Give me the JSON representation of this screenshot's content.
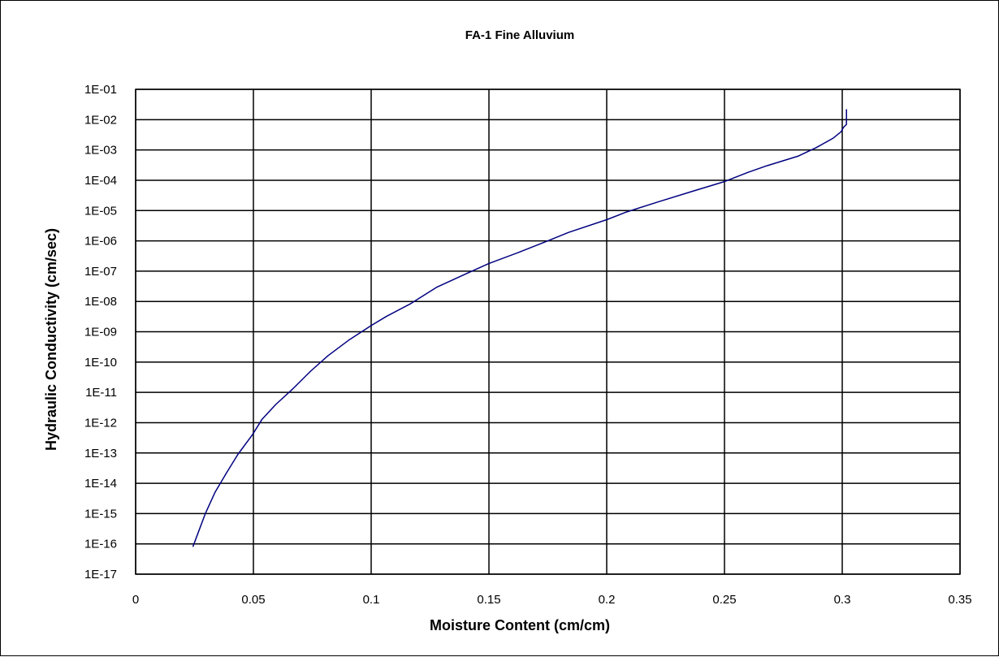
{
  "chart_data": {
    "type": "line",
    "title": "FA-1 Fine Alluvium",
    "xlabel": "Moisture Content (cm/cm)",
    "ylabel": "Hydraulic Conductivity (cm/sec)",
    "xlim": [
      0,
      0.35
    ],
    "ylim": [
      1e-17,
      0.1
    ],
    "y_scale": "log",
    "grid": true,
    "legend": "none",
    "x_ticks": [
      "0",
      "0.05",
      "0.1",
      "0.15",
      "0.2",
      "0.25",
      "0.3",
      "0.35"
    ],
    "x_tick_values": [
      0,
      0.05,
      0.1,
      0.15,
      0.2,
      0.25,
      0.3,
      0.35
    ],
    "y_ticks": [
      "1E-01",
      "1E-02",
      "1E-03",
      "1E-04",
      "1E-05",
      "1E-06",
      "1E-07",
      "1E-08",
      "1E-09",
      "1E-10",
      "1E-11",
      "1E-12",
      "1E-13",
      "1E-14",
      "1E-15",
      "1E-16",
      "1E-17"
    ],
    "y_tick_values": [
      0.1,
      0.01,
      0.001,
      0.0001,
      1e-05,
      1e-06,
      1e-07,
      1e-08,
      1e-09,
      1e-10,
      1e-11,
      1e-12,
      1e-13,
      1e-14,
      1e-15,
      1e-16,
      1e-17
    ],
    "line_color": "#000080",
    "series": [
      {
        "points": [
          [
            0.0243,
            8e-17
          ],
          [
            0.0265,
            2.3e-16
          ],
          [
            0.0296,
            1e-15
          ],
          [
            0.0337,
            5e-15
          ],
          [
            0.0386,
            2.2e-14
          ],
          [
            0.0434,
            9e-14
          ],
          [
            0.0496,
            4e-13
          ],
          [
            0.0537,
            1.3e-12
          ],
          [
            0.0595,
            4e-12
          ],
          [
            0.0667,
            1.3e-11
          ],
          [
            0.0743,
            5e-11
          ],
          [
            0.0816,
            1.6e-10
          ],
          [
            0.0908,
            5.5e-10
          ],
          [
            0.1,
            1.6e-09
          ],
          [
            0.1064,
            3.2e-09
          ],
          [
            0.1166,
            8.3e-09
          ],
          [
            0.128,
            3e-08
          ],
          [
            0.1404,
            8.3e-08
          ],
          [
            0.15,
            1.8e-07
          ],
          [
            0.1628,
            4.2e-07
          ],
          [
            0.175,
            1e-06
          ],
          [
            0.1838,
            1.9e-06
          ],
          [
            0.2,
            5e-06
          ],
          [
            0.2083,
            8.9e-06
          ],
          [
            0.2216,
            1.9e-05
          ],
          [
            0.2359,
            4.2e-05
          ],
          [
            0.25,
            9e-05
          ],
          [
            0.2598,
            0.00018
          ],
          [
            0.268,
            0.0003
          ],
          [
            0.2814,
            0.00063
          ],
          [
            0.289,
            0.0012
          ],
          [
            0.296,
            0.0024
          ],
          [
            0.2995,
            0.004
          ],
          [
            0.3005,
            0.0055
          ],
          [
            0.3018,
            0.007
          ],
          [
            0.3018,
            0.022
          ]
        ]
      }
    ]
  }
}
